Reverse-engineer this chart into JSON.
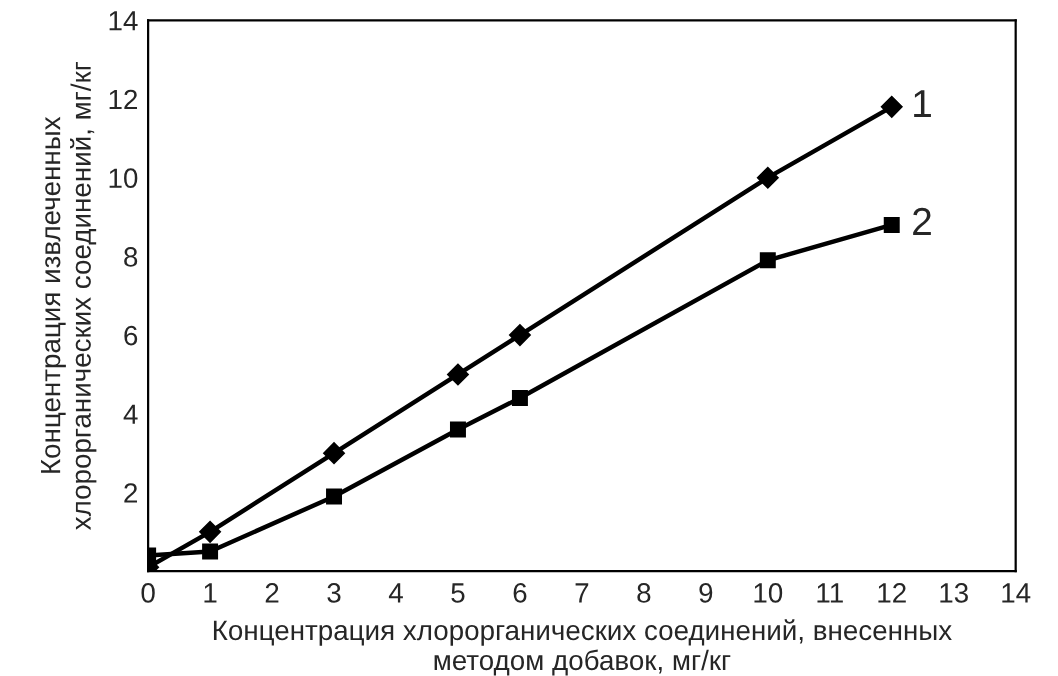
{
  "chart_data": {
    "type": "line",
    "xlabel": "Концентрация хлорорганических соединений, внесенных\nметодом добавок, мг/кг",
    "ylabel": "Концентрация извлеченных\nхлорорганических соединений, мг/кг",
    "x": [
      0,
      1,
      3,
      5,
      6,
      10,
      12
    ],
    "series": [
      {
        "name": "1",
        "color": "#000000",
        "marker": "diamond",
        "values": [
          0.1,
          1,
          3,
          5,
          6,
          10,
          11.8
        ]
      },
      {
        "name": "2",
        "color": "#000000",
        "marker": "square",
        "values": [
          0.4,
          0.5,
          1.9,
          3.6,
          4.4,
          7.9,
          8.8
        ]
      }
    ],
    "xlim": [
      0,
      14
    ],
    "ylim": [
      0,
      14
    ],
    "xticks": [
      0,
      1,
      2,
      3,
      4,
      5,
      6,
      7,
      8,
      9,
      10,
      11,
      12,
      13,
      14
    ],
    "yticks": [
      2,
      4,
      6,
      8,
      10,
      12,
      14
    ],
    "grid": false,
    "legend": false,
    "line_style": "solid"
  }
}
